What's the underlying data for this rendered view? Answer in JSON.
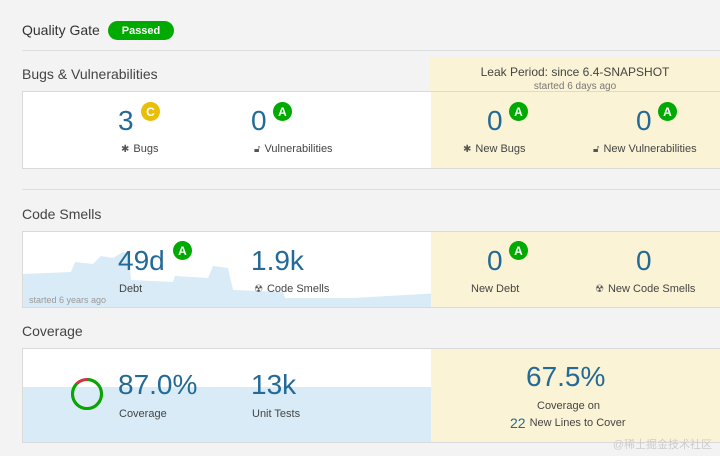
{
  "quality_gate": {
    "title": "Quality Gate",
    "status": "Passed",
    "status_color": "#00aa00"
  },
  "leak": {
    "title": "Leak Period: since 6.4-SNAPSHOT",
    "subtitle": "started 6 days ago"
  },
  "sections": {
    "bugs_vulns": {
      "title": "Bugs & Vulnerabilities",
      "bugs": {
        "value": "3",
        "rating": "C",
        "label": "Bugs"
      },
      "vulnerabilities": {
        "value": "0",
        "rating": "A",
        "label": "Vulnerabilities"
      },
      "new_bugs": {
        "value": "0",
        "rating": "A",
        "label": "New Bugs"
      },
      "new_vulnerabilities": {
        "value": "0",
        "rating": "A",
        "label": "New Vulnerabilities"
      }
    },
    "code_smells": {
      "title": "Code Smells",
      "debt": {
        "value": "49d",
        "rating": "A",
        "label": "Debt"
      },
      "smells": {
        "value": "1.9k",
        "label": "Code Smells"
      },
      "new_debt": {
        "value": "0",
        "rating": "A",
        "label": "New Debt"
      },
      "new_smells": {
        "value": "0",
        "label": "New Code Smells"
      },
      "chart_note": "started 6 years ago"
    },
    "coverage": {
      "title": "Coverage",
      "coverage": {
        "value": "87.0%",
        "label": "Coverage",
        "percent": 87.0
      },
      "unit_tests": {
        "value": "13k",
        "label": "Unit Tests"
      },
      "new_coverage": {
        "value": "67.5%",
        "label": "Coverage on",
        "lines_value": "22",
        "lines_label": "New Lines to Cover"
      }
    }
  },
  "watermark": "@稀土掘金技术社区",
  "colors": {
    "accent_blue": "#236a97",
    "rating_A": "#00aa00",
    "rating_C": "#eabe06",
    "leak_bg": "#fbf3d5"
  }
}
